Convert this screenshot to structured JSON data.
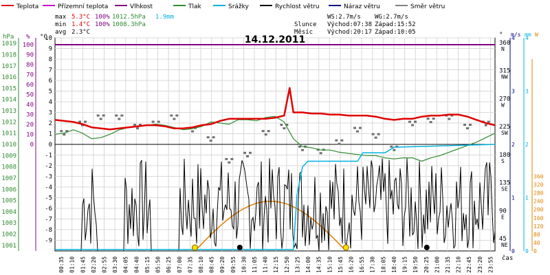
{
  "chart_data": {
    "type": "line",
    "title": "14.12.2011",
    "legend": [
      {
        "label": "Teplota",
        "color": "#e00000"
      },
      {
        "label": "Přízemní teplota",
        "color": "#cc00cc"
      },
      {
        "label": "Vlhkost",
        "color": "#800080"
      },
      {
        "label": "Tlak",
        "color": "#2e8b2e"
      },
      {
        "label": "Srážky",
        "color": "#00b0e0"
      },
      {
        "label": "Rychlost větru",
        "color": "#000000"
      },
      {
        "label": "Náraz větru",
        "color": "#000080"
      },
      {
        "label": "Směr větru",
        "color": "#808080"
      }
    ],
    "stats": {
      "max_label": "max",
      "max_temp": "5.3°C",
      "max_hum": "100%",
      "max_press": "1012.5hPa",
      "max_rain": "1.9mm",
      "min_label": "min",
      "min_temp": "1.4°C",
      "min_hum": "100%",
      "min_press": "1008.3hPa",
      "avg_label": "avg",
      "avg_temp": "2.3°C"
    },
    "wind_info": {
      "ws": "WS:2.7m/s",
      "wg": "WG:2.7m/s"
    },
    "sun": {
      "label": "Slunce",
      "rise": "Východ:07:38",
      "set": "Západ:15:52"
    },
    "moon": {
      "label": "Měsíc",
      "rise": "Východ:20:17",
      "set": "Západ:10:05"
    },
    "axes": {
      "hpa": {
        "unit": "hPa",
        "ticks": [
          "1019",
          "1018",
          "1017",
          "1016",
          "1015",
          "1014",
          "1013",
          "1012",
          "1011",
          "1010",
          "1009",
          "1008",
          "1007",
          "1006",
          "1005",
          "1004",
          "1003",
          "1002",
          "1001"
        ]
      },
      "pct": {
        "unit": "%",
        "ticks": [
          "100",
          "90",
          "80",
          "70",
          "60",
          "50",
          "40",
          "30",
          "20",
          "10",
          "0"
        ]
      },
      "temp": {
        "unit": "°C",
        "ticks": [
          "10",
          "9",
          "8",
          "7",
          "6",
          "5",
          "4",
          "3",
          "2",
          "1",
          "0",
          "-1",
          "-2",
          "-3",
          "-4",
          "-5",
          "-6",
          "-7",
          "-8",
          "-9"
        ]
      },
      "dir": {
        "unit": "°",
        "ticks": [
          "360",
          "315",
          "270",
          "225",
          "180",
          "135",
          "90",
          "45"
        ],
        "labels": [
          "N",
          "NW",
          "W",
          "SW",
          "S",
          "SE",
          "E",
          "NE"
        ]
      },
      "ms": {
        "unit": "m/s",
        "ticks": [
          "4",
          "3",
          "2",
          "1",
          "0"
        ]
      },
      "mm": {
        "unit": "mm",
        "ticks": [
          "4",
          "3",
          "2",
          "1",
          "0"
        ]
      },
      "w": {
        "unit": "W",
        "ticks": [
          "360",
          "320",
          "280",
          "240",
          "200",
          "160",
          "120",
          "80",
          "40",
          "0"
        ]
      },
      "time_label": "čas",
      "time_ticks": [
        "00:35",
        "01:10",
        "01:45",
        "02:20",
        "02:55",
        "03:30",
        "04:05",
        "04:40",
        "05:15",
        "05:50",
        "06:25",
        "07:00",
        "07:35",
        "08:10",
        "08:45",
        "09:20",
        "09:55",
        "10:30",
        "11:05",
        "11:40",
        "12:15",
        "12:50",
        "13:25",
        "14:00",
        "14:35",
        "15:10",
        "15:45",
        "16:20",
        "16:55",
        "17:30",
        "18:05",
        "18:40",
        "19:15",
        "19:50",
        "20:25",
        "21:00",
        "21:35",
        "22:10",
        "22:45",
        "23:20",
        "23:55"
      ]
    },
    "series": {
      "teplota": {
        "x": [
          0,
          0.5,
          1,
          1.5,
          2,
          2.5,
          3,
          3.5,
          4,
          4.5,
          5,
          5.5,
          6,
          6.5,
          7,
          7.5,
          8,
          8.5,
          9,
          9.5,
          10,
          10.5,
          11,
          11.5,
          12,
          12.5,
          12.8,
          13,
          13.5,
          14,
          14.5,
          15,
          15.5,
          16,
          16.5,
          17,
          17.5,
          18,
          18.5,
          19,
          19.5,
          20,
          20.5,
          21,
          21.5,
          22,
          22.5,
          23,
          23.5,
          24
        ],
        "y": [
          2.3,
          2.2,
          2.1,
          1.9,
          1.6,
          1.5,
          1.4,
          1.5,
          1.6,
          1.7,
          1.8,
          1.8,
          1.7,
          1.5,
          1.5,
          1.6,
          1.8,
          1.9,
          2.2,
          2.4,
          2.4,
          2.4,
          2.4,
          2.4,
          2.5,
          2.7,
          5.3,
          3.0,
          3.0,
          2.9,
          2.9,
          2.8,
          2.8,
          2.7,
          2.7,
          2.7,
          2.6,
          2.4,
          2.3,
          2.4,
          2.4,
          2.6,
          2.7,
          2.7,
          2.8,
          2.8,
          2.6,
          2.3,
          2.0,
          1.8
        ]
      },
      "tlak": {
        "x": [
          0,
          0.5,
          1,
          1.5,
          2,
          2.5,
          3,
          3.5,
          4,
          4.5,
          5,
          5.5,
          6,
          6.5,
          7,
          7.5,
          8,
          8.5,
          9,
          9.5,
          10,
          10.5,
          11,
          11.5,
          12,
          12.5,
          13,
          13.5,
          14,
          14.5,
          15,
          15.5,
          16,
          16.5,
          17,
          17.5,
          18,
          18.5,
          19,
          19.5,
          20,
          20.5,
          21,
          21.5,
          22,
          22.5,
          23,
          23.5,
          24
        ],
        "y": [
          1010.9,
          1011.0,
          1011.3,
          1011.0,
          1010.5,
          1010.6,
          1010.9,
          1011.3,
          1011.5,
          1011.6,
          1011.7,
          1011.8,
          1011.7,
          1011.5,
          1011.3,
          1011.4,
          1011.6,
          1012.0,
          1011.9,
          1011.8,
          1012.2,
          1012.2,
          1012.1,
          1012.4,
          1012.5,
          1012.0,
          1010.5,
          1009.8,
          1009.7,
          1009.5,
          1009.5,
          1009.3,
          1009.2,
          1009.1,
          1009.0,
          1009.0,
          1008.8,
          1008.7,
          1008.8,
          1008.8,
          1008.5,
          1008.8,
          1009.0,
          1009.3,
          1009.6,
          1009.9,
          1010.2,
          1010.6,
          1011.0
        ]
      },
      "srazky": {
        "x": [
          0,
          13.0,
          13.2,
          13.5,
          13.8,
          14.0,
          16.5,
          16.8,
          18.0,
          18.5,
          24
        ],
        "y": [
          0,
          0,
          1.0,
          1.5,
          1.6,
          1.6,
          1.6,
          1.75,
          1.75,
          1.85,
          1.9
        ]
      },
      "vitr_avg_ms": 1.2,
      "vitr_max_ms": 2.7,
      "slunce_w": {
        "max": 240,
        "rise_h": 7.63,
        "set_h": 15.87
      },
      "smer": {
        "x": [
          0.5,
          1.5,
          2.5,
          3.5,
          4.5,
          5.5,
          6.5,
          7.5,
          8.5,
          9.5,
          10.5,
          11.5,
          12.5,
          13.5,
          14.5,
          15.5,
          16.5,
          17.5,
          18.5,
          19.5,
          20.5,
          21.5,
          22.5,
          23.5
        ],
        "y": [
          225,
          240,
          250,
          250,
          235,
          240,
          250,
          230,
          215,
          180,
          190,
          225,
          235,
          200,
          195,
          210,
          230,
          220,
          200,
          240,
          245,
          250,
          235,
          240
        ]
      }
    },
    "moon_events": [
      {
        "label": "moonset",
        "h": 10.08
      },
      {
        "label": "moonrise",
        "h": 20.28
      }
    ],
    "sun_events": [
      {
        "label": "sunrise",
        "h": 7.63
      },
      {
        "label": "sunset",
        "h": 15.87
      }
    ],
    "xlim": [
      0,
      24
    ]
  }
}
